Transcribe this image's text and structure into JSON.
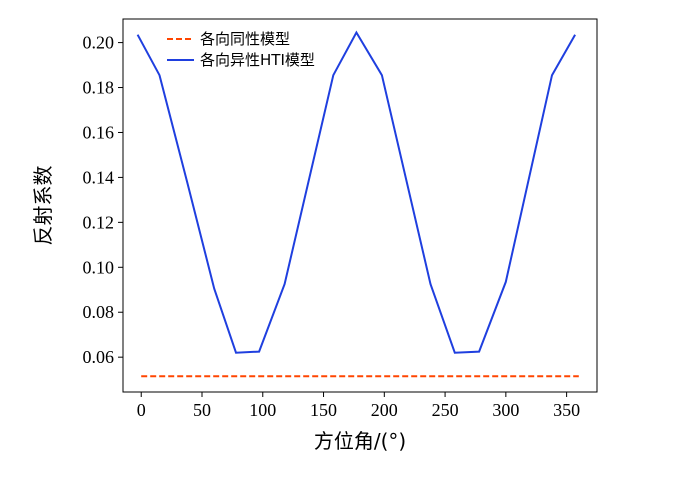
{
  "chart_data": {
    "type": "line",
    "xlabel": "方位角/(°)",
    "ylabel": "反射系数",
    "xlim": [
      -15,
      375
    ],
    "ylim": [
      0.0445,
      0.2105
    ],
    "xticks": [
      0,
      50,
      100,
      150,
      200,
      250,
      300,
      350
    ],
    "xtick_labels": [
      "0",
      "50",
      "100",
      "150",
      "200",
      "250",
      "300",
      "350"
    ],
    "yticks": [
      0.06,
      0.08,
      0.1,
      0.12,
      0.14,
      0.16,
      0.18,
      0.2
    ],
    "ytick_labels": [
      "0.06",
      "0.08",
      "0.10",
      "0.12",
      "0.14",
      "0.16",
      "0.18",
      "0.20"
    ],
    "grid": false,
    "legend_position": "top-left",
    "series": [
      {
        "name": "各向同性模型",
        "color": "#ff4500",
        "style": "dashed",
        "x": [
          0,
          360
        ],
        "y": [
          0.0515,
          0.0515
        ]
      },
      {
        "name": "各向异性HTI模型",
        "color": "#1f3fdf",
        "style": "solid",
        "x": [
          -3,
          15,
          38,
          60,
          78,
          97,
          118,
          158,
          177,
          198,
          238,
          258,
          278,
          300,
          338,
          357
        ],
        "y": [
          0.2035,
          0.1855,
          0.1375,
          0.0905,
          0.062,
          0.0625,
          0.0925,
          0.1855,
          0.2045,
          0.1855,
          0.0925,
          0.062,
          0.0625,
          0.0935,
          0.1855,
          0.2035
        ]
      }
    ]
  }
}
